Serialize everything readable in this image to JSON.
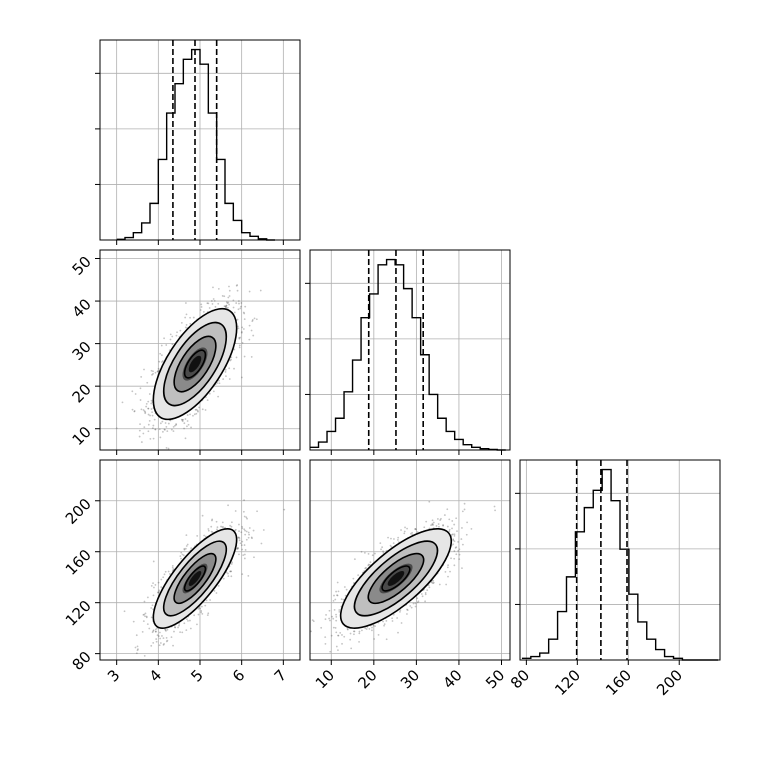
{
  "chart_data": [
    {
      "type": "histogram",
      "panel": "param1-marginal",
      "xlim": [
        2.6,
        7.4
      ],
      "bin_centers": [
        3.1,
        3.3,
        3.5,
        3.7,
        3.9,
        4.1,
        4.3,
        4.5,
        4.7,
        4.9,
        5.1,
        5.3,
        5.5,
        5.7,
        5.9,
        6.1,
        6.3,
        6.5,
        6.7
      ],
      "counts": [
        0.3,
        1,
        3,
        7,
        15,
        33,
        52,
        64,
        74,
        78,
        72,
        52,
        33,
        15,
        8,
        3,
        1.5,
        0.5,
        0
      ],
      "quantiles": [
        4.35,
        4.88,
        5.4
      ],
      "grid": true
    },
    {
      "type": "histogram",
      "panel": "param2-marginal",
      "xlim": [
        5,
        52
      ],
      "bin_centers": [
        6,
        8,
        10,
        12,
        14,
        16,
        18,
        20,
        22,
        24,
        26,
        28,
        30,
        32,
        34,
        36,
        38,
        40,
        42,
        44,
        46,
        48,
        50
      ],
      "counts": [
        1,
        3,
        7,
        12,
        22,
        34,
        50,
        59,
        70,
        72,
        70,
        61,
        50,
        36,
        21,
        12,
        7,
        4,
        2,
        1,
        0.5,
        0.2,
        0
      ],
      "quantiles": [
        18.8,
        25.2,
        31.6
      ],
      "grid": true
    },
    {
      "type": "histogram",
      "panel": "param3-marginal",
      "xlim": [
        75,
        232
      ],
      "bin_centers": [
        80,
        87,
        94,
        101,
        108,
        115,
        122,
        129,
        136,
        143,
        150,
        157,
        164,
        171,
        178,
        185,
        192,
        199,
        206,
        213,
        220,
        227
      ],
      "counts": [
        0.5,
        1,
        2,
        6,
        14,
        24,
        37,
        44,
        49,
        55,
        46,
        32,
        19,
        11,
        6,
        3,
        1,
        0.5,
        0,
        0,
        0,
        0
      ],
      "quantiles": [
        119.5,
        138.5,
        159
      ],
      "grid": true
    },
    {
      "type": "2d-density",
      "panel": "param1-vs-param2",
      "xlim": [
        2.6,
        7.4
      ],
      "ylim": [
        5,
        52
      ],
      "center": [
        4.88,
        25.2
      ],
      "std": [
        0.5,
        6.5
      ],
      "correlation": 0.65,
      "contour_levels_sigma": [
        0.5,
        1.0,
        1.5,
        2.0
      ],
      "grid": true
    },
    {
      "type": "2d-density",
      "panel": "param1-vs-param3",
      "xlim": [
        2.6,
        7.4
      ],
      "ylim": [
        75,
        232
      ],
      "center": [
        4.88,
        139
      ],
      "std": [
        0.5,
        19.5
      ],
      "correlation": 0.78,
      "contour_levels_sigma": [
        0.5,
        1.0,
        1.5,
        2.0
      ],
      "grid": true
    },
    {
      "type": "2d-density",
      "panel": "param2-vs-param3",
      "xlim": [
        5,
        52
      ],
      "ylim": [
        75,
        232
      ],
      "center": [
        25.2,
        139
      ],
      "std": [
        6.5,
        19.5
      ],
      "correlation": 0.75,
      "contour_levels_sigma": [
        0.5,
        1.0,
        1.5,
        2.0
      ],
      "grid": true
    }
  ],
  "axes": {
    "param1_ticks": [
      "3",
      "4",
      "5",
      "6",
      "7"
    ],
    "param2_ticks": [
      "10",
      "20",
      "30",
      "40",
      "50"
    ],
    "param3_ticks_y": [
      "80",
      "120",
      "160",
      "200"
    ],
    "param3_ticks_x": [
      "80",
      "120",
      "160",
      "200"
    ]
  }
}
